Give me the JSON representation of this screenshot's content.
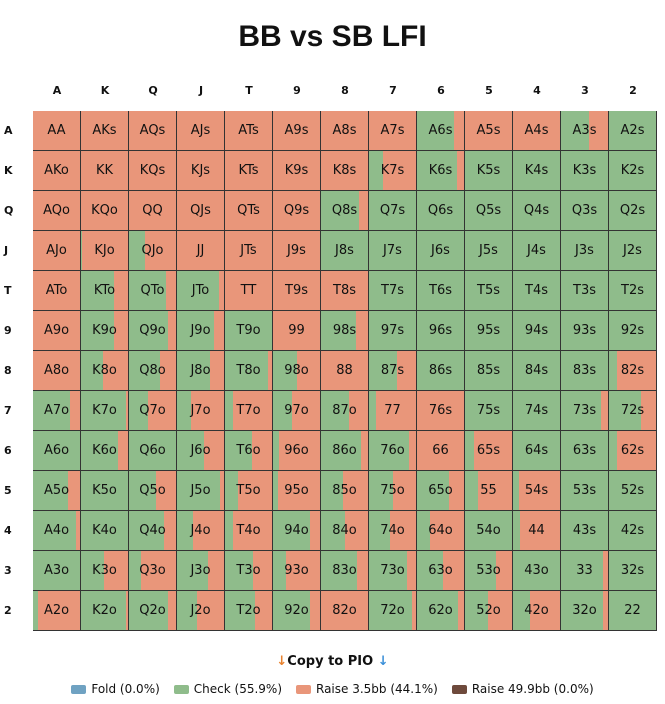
{
  "title": "BB vs SB LFI",
  "copy_button": {
    "arrow_left": "↓",
    "label": "Copy to PIO",
    "arrow_right": "↓",
    "arrow_left_color": "#e8822e",
    "arrow_right_color": "#3a8fd8"
  },
  "legend": [
    {
      "label": "Fold (0.0%)",
      "color": "#6fa2c2"
    },
    {
      "label": "Check (55.9%)",
      "color": "#8fbc8b"
    },
    {
      "label": "Raise 3.5bb (44.1%)",
      "color": "#e9967a"
    },
    {
      "label": "Raise 49.9bb (0.0%)",
      "color": "#6e4a3c"
    }
  ],
  "chart_data": {
    "type": "heatmap",
    "title": "BB vs SB LFI",
    "ranks": [
      "A",
      "K",
      "Q",
      "J",
      "T",
      "9",
      "8",
      "7",
      "6",
      "5",
      "4",
      "3",
      "2"
    ],
    "actions": [
      "Check",
      "Raise 3.5bb"
    ],
    "colors": {
      "check": "#8fbc8b",
      "raise": "#e9967a"
    },
    "hands": [
      [
        "AA",
        "AKs",
        "AQs",
        "AJs",
        "ATs",
        "A9s",
        "A8s",
        "A7s",
        "A6s",
        "A5s",
        "A4s",
        "A3s",
        "A2s"
      ],
      [
        "AKo",
        "KK",
        "KQs",
        "KJs",
        "KTs",
        "K9s",
        "K8s",
        "K7s",
        "K6s",
        "K5s",
        "K4s",
        "K3s",
        "K2s"
      ],
      [
        "AQo",
        "KQo",
        "QQ",
        "QJs",
        "QTs",
        "Q9s",
        "Q8s",
        "Q7s",
        "Q6s",
        "Q5s",
        "Q4s",
        "Q3s",
        "Q2s"
      ],
      [
        "AJo",
        "KJo",
        "QJo",
        "JJ",
        "JTs",
        "J9s",
        "J8s",
        "J7s",
        "J6s",
        "J5s",
        "J4s",
        "J3s",
        "J2s"
      ],
      [
        "ATo",
        "KTo",
        "QTo",
        "JTo",
        "TT",
        "T9s",
        "T8s",
        "T7s",
        "T6s",
        "T5s",
        "T4s",
        "T3s",
        "T2s"
      ],
      [
        "A9o",
        "K9o",
        "Q9o",
        "J9o",
        "T9o",
        "99",
        "98s",
        "97s",
        "96s",
        "95s",
        "94s",
        "93s",
        "92s"
      ],
      [
        "A8o",
        "K8o",
        "Q8o",
        "J8o",
        "T8o",
        "98o",
        "88",
        "87s",
        "86s",
        "85s",
        "84s",
        "83s",
        "82s"
      ],
      [
        "A7o",
        "K7o",
        "Q7o",
        "J7o",
        "T7o",
        "97o",
        "87o",
        "77",
        "76s",
        "75s",
        "74s",
        "73s",
        "72s"
      ],
      [
        "A6o",
        "K6o",
        "Q6o",
        "J6o",
        "T6o",
        "96o",
        "86o",
        "76o",
        "66",
        "65s",
        "64s",
        "63s",
        "62s"
      ],
      [
        "A5o",
        "K5o",
        "Q5o",
        "J5o",
        "T5o",
        "95o",
        "85o",
        "75o",
        "65o",
        "55",
        "54s",
        "53s",
        "52s"
      ],
      [
        "A4o",
        "K4o",
        "Q4o",
        "J4o",
        "T4o",
        "94o",
        "84o",
        "74o",
        "64o",
        "54o",
        "44",
        "43s",
        "42s"
      ],
      [
        "A3o",
        "K3o",
        "Q3o",
        "J3o",
        "T3o",
        "93o",
        "83o",
        "73o",
        "63o",
        "53o",
        "43o",
        "33",
        "32s"
      ],
      [
        "A2o",
        "K2o",
        "Q2o",
        "J2o",
        "T2o",
        "92o",
        "82o",
        "72o",
        "62o",
        "52o",
        "42o",
        "32o",
        "22"
      ]
    ],
    "check_frequency": [
      [
        0,
        0,
        0,
        0,
        0,
        0,
        0,
        0,
        0.78,
        0,
        0,
        0.6,
        1
      ],
      [
        0,
        0,
        0,
        0,
        0,
        0,
        0,
        0.3,
        0.85,
        1,
        1,
        1,
        1
      ],
      [
        0,
        0,
        0,
        0,
        0,
        0,
        0.81,
        1,
        1,
        1,
        1,
        1,
        1
      ],
      [
        0,
        0.03,
        0.33,
        0,
        0,
        0,
        1,
        1,
        1,
        1,
        1,
        1,
        1
      ],
      [
        0,
        0.7,
        0.78,
        0.9,
        0,
        0,
        0,
        1,
        1,
        1,
        1,
        1,
        1
      ],
      [
        0,
        0.71,
        0.83,
        0.78,
        1,
        0,
        0.75,
        1,
        1,
        1,
        1,
        1,
        1
      ],
      [
        0,
        0.47,
        0.65,
        0.71,
        0.92,
        0.5,
        0,
        0.6,
        1,
        1,
        1,
        1,
        0.18
      ],
      [
        0.78,
        0.95,
        0.41,
        0.29,
        0.17,
        0.4,
        0.6,
        0.15,
        0,
        1,
        1,
        0.85,
        0.69
      ],
      [
        1,
        0.78,
        1,
        0.58,
        0.58,
        0.12,
        0.86,
        0.86,
        0,
        0.19,
        1,
        1,
        0.18
      ],
      [
        0.75,
        1,
        0.58,
        0.92,
        0.28,
        0.11,
        0.47,
        0.52,
        0.69,
        0.27,
        0.12,
        1,
        1
      ],
      [
        0.92,
        1,
        0.75,
        0.33,
        0.16,
        0.78,
        0.51,
        0.44,
        0.28,
        1,
        0.14,
        1,
        1
      ],
      [
        1,
        0.49,
        0.25,
        0.66,
        0.59,
        0.28,
        0.77,
        0.8,
        0.56,
        0.65,
        1,
        0.9,
        1
      ],
      [
        0.1,
        0.95,
        0.82,
        0.42,
        0.63,
        0.78,
        0,
        0.91,
        0.87,
        0.49,
        0.37,
        0.9,
        1
      ]
    ]
  }
}
